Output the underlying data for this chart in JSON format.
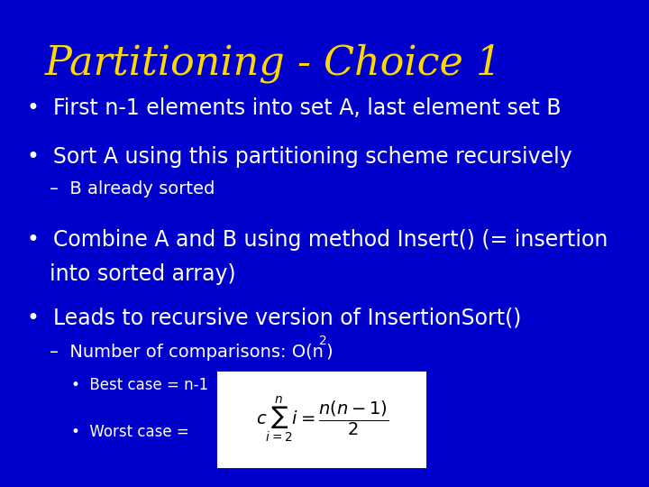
{
  "title": "Partitioning - Choice 1",
  "title_color": "#FFD700",
  "title_fontsize": 32,
  "background_color": "#0000CC",
  "text_color": "#FFFFFF",
  "bullet_color": "#FFFFFF",
  "formula_box_color": "#FFFFFF",
  "formula_text_color": "#000000",
  "bullets": [
    {
      "level": 1,
      "text": "First n-1 elements into set A, last element set B",
      "fontsize": 18,
      "style": "normal"
    },
    {
      "level": 1,
      "text": "Sort A using this partitioning scheme recursively",
      "fontsize": 18,
      "style": "normal"
    },
    {
      "level": 2,
      "text": "–  B already sorted",
      "fontsize": 15,
      "style": "normal"
    },
    {
      "level": 1,
      "text": "Combine A and B using method Insert() (= insertion\n    into sorted array)",
      "fontsize": 18,
      "style": "normal"
    },
    {
      "level": 1,
      "text": "Leads to recursive version of InsertionSort()",
      "fontsize": 18,
      "style": "normal"
    },
    {
      "level": 2,
      "text": "–  Number of comparisons: O(n²)",
      "fontsize": 15,
      "style": "normal"
    },
    {
      "level": 3,
      "text": "•  Best case = n-1",
      "fontsize": 13,
      "style": "normal"
    },
    {
      "level": 3,
      "text": "•  Worst case = ",
      "fontsize": 13,
      "style": "normal"
    }
  ]
}
